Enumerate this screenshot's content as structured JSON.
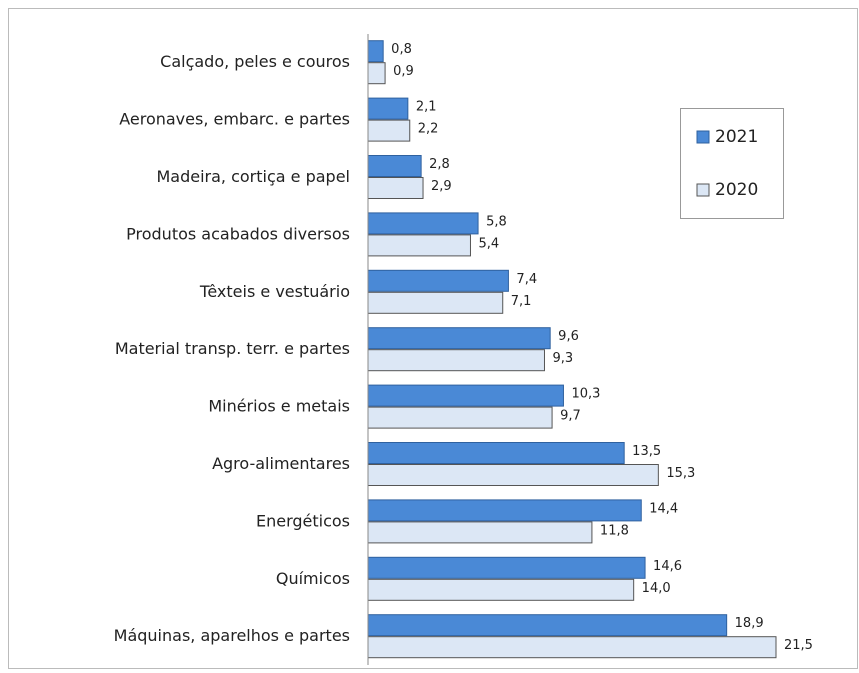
{
  "chart_data": {
    "type": "barh",
    "categories": [
      "Calçado, peles e couros",
      "Aeronaves, embarc. e partes",
      "Madeira, cortiça e papel",
      "Produtos acabados diversos",
      "Têxteis e vestuário",
      "Material transp. terr. e partes",
      "Minérios e metais",
      "Agro-alimentares",
      "Energéticos",
      "Químicos",
      "Máquinas, aparelhos e partes"
    ],
    "series": [
      {
        "name": "2021",
        "color": "#4a89d6",
        "values": [
          0.8,
          2.1,
          2.8,
          5.8,
          7.4,
          9.6,
          10.3,
          13.5,
          14.4,
          14.6,
          18.9
        ],
        "value_labels": [
          "0,8",
          "2,1",
          "2,8",
          "5,8",
          "7,4",
          "9,6",
          "10,3",
          "13,5",
          "14,4",
          "14,6",
          "18,9"
        ]
      },
      {
        "name": "2020",
        "color": "#dce7f5",
        "values": [
          0.9,
          2.2,
          2.9,
          5.4,
          7.1,
          9.3,
          9.7,
          15.3,
          11.8,
          14.0,
          21.5
        ],
        "value_labels": [
          "0,9",
          "2,2",
          "2,9",
          "5,4",
          "7,1",
          "9,3",
          "9,7",
          "15,3",
          "11,8",
          "14,0",
          "21,5"
        ]
      }
    ]
  }
}
